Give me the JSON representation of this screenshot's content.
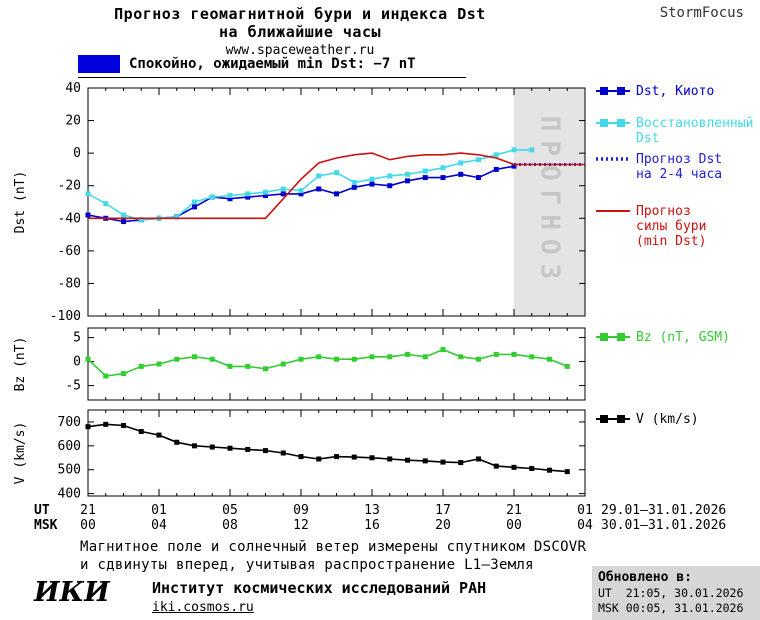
{
  "header": {
    "title_line1": "Прогноз геомагнитной бури и индекса Dst",
    "title_line2": "на ближайшие часы",
    "site": "www.spaceweather.ru",
    "brand": "StormFocus"
  },
  "status_legend": {
    "label": "Спокойно, ожидаемый min Dst: −7 nT",
    "swatch_color": "#0000dd"
  },
  "chart_data": [
    {
      "type": "line",
      "slug": "dst",
      "ylabel": "Dst (nT)",
      "ylim": [
        -100,
        40
      ],
      "yticks": [
        40,
        20,
        0,
        -20,
        -40,
        -60,
        -80,
        -100
      ],
      "series": [
        {
          "name": "Dst, Киото",
          "slug": "dst-kyoto",
          "color": "#0000cc",
          "marker": "square",
          "style": "solid",
          "x": [
            0,
            1,
            2,
            3,
            4,
            5,
            6,
            7,
            8,
            9,
            10,
            11,
            12,
            13,
            14,
            15,
            16,
            17,
            18,
            19,
            20,
            21,
            22,
            23,
            24
          ],
          "values": [
            -38,
            -40,
            -42,
            -41,
            -40,
            -39,
            -33,
            -27,
            -28,
            -27,
            -26,
            -25,
            -25,
            -22,
            -25,
            -21,
            -19,
            -20,
            -17,
            -15,
            -15,
            -13,
            -15,
            -10,
            -8
          ]
        },
        {
          "name": "Восстановленный Dst",
          "slug": "reconstructed-dst",
          "color": "#44d9e6",
          "marker": "square",
          "style": "solid",
          "x": [
            0,
            1,
            2,
            3,
            4,
            5,
            6,
            7,
            8,
            9,
            10,
            11,
            12,
            13,
            14,
            15,
            16,
            17,
            18,
            19,
            20,
            21,
            22,
            23,
            24,
            25
          ],
          "values": [
            -25,
            -31,
            -38,
            -41,
            -40,
            -39,
            -30,
            -27,
            -26,
            -25,
            -24,
            -22,
            -23,
            -14,
            -12,
            -18,
            -16,
            -14,
            -13,
            -11,
            -9,
            -6,
            -4,
            -1,
            2,
            2
          ]
        },
        {
          "name": "Прогноз Dst на 2-4 часа",
          "slug": "forecast-dst",
          "color": "#2222cc",
          "marker": "none",
          "style": "dotted",
          "x": [
            24,
            25,
            26,
            27,
            28
          ],
          "values": [
            -7,
            -7,
            -7,
            -7,
            -7
          ]
        },
        {
          "name": "Прогноз силы бури (min Dst)",
          "slug": "storm-strength-forecast",
          "color": "#cc1111",
          "marker": "none",
          "style": "solid",
          "x": [
            0,
            9,
            10,
            11,
            12,
            13,
            14,
            15,
            16,
            17,
            18,
            19,
            20,
            21,
            22,
            23,
            24,
            28
          ],
          "values": [
            -40,
            -40,
            -40,
            -28,
            -16,
            -6,
            -3,
            -1,
            0,
            -4,
            -2,
            -1,
            -1,
            0,
            -1,
            -3,
            -7,
            -7
          ]
        }
      ]
    },
    {
      "type": "line",
      "slug": "bz",
      "ylabel": "Bz (nT)",
      "ylim": [
        -8,
        7
      ],
      "yticks": [
        5,
        0,
        -5
      ],
      "series": [
        {
          "name": "Bz (nT, GSM)",
          "slug": "bz",
          "color": "#33cc33",
          "marker": "square",
          "style": "solid",
          "x": [
            0,
            1,
            2,
            3,
            4,
            5,
            6,
            7,
            8,
            9,
            10,
            11,
            12,
            13,
            14,
            15,
            16,
            17,
            18,
            19,
            20,
            21,
            22,
            23,
            24,
            25,
            26,
            27
          ],
          "values": [
            0.5,
            -3,
            -2.5,
            -1,
            -0.5,
            0.5,
            1,
            0.5,
            -1,
            -1,
            -1.5,
            -0.5,
            0.5,
            1,
            0.5,
            0.5,
            1,
            1,
            1.5,
            1,
            2.5,
            1,
            0.5,
            1.5,
            1.5,
            1,
            0.5,
            -1
          ]
        }
      ]
    },
    {
      "type": "line",
      "slug": "v",
      "ylabel": "V (km/s)",
      "ylim": [
        390,
        750
      ],
      "yticks": [
        700,
        600,
        500,
        400
      ],
      "series": [
        {
          "name": "V (km/s)",
          "slug": "solar-wind-speed",
          "color": "#000000",
          "marker": "square",
          "style": "solid",
          "x": [
            0,
            1,
            2,
            3,
            4,
            5,
            6,
            7,
            8,
            9,
            10,
            11,
            12,
            13,
            14,
            15,
            16,
            17,
            18,
            19,
            20,
            21,
            22,
            23,
            24,
            25,
            26,
            27
          ],
          "values": [
            680,
            690,
            685,
            660,
            645,
            615,
            600,
            595,
            590,
            585,
            580,
            570,
            555,
            545,
            555,
            553,
            550,
            545,
            540,
            537,
            532,
            530,
            545,
            515,
            510,
            505,
            498,
            492
          ]
        }
      ]
    }
  ],
  "xaxis": {
    "ut_label": "UT",
    "msk_label": "MSK",
    "tick_hours": [
      0,
      4,
      8,
      12,
      16,
      20,
      24,
      28
    ],
    "ut_ticks": [
      "21",
      "01",
      "05",
      "09",
      "13",
      "17",
      "21",
      "01"
    ],
    "msk_ticks": [
      "00",
      "04",
      "08",
      "12",
      "16",
      "20",
      "00",
      "04"
    ],
    "ut_range": "29.01–31.01.2026",
    "msk_range": "30.01–31.01.2026"
  },
  "forecast_overlay": {
    "label": "ПРОГНОЗ",
    "start_hour": 24,
    "end_hour": 28
  },
  "footnote": {
    "line1": "Магнитное поле и солнечный ветер измерены спутником DSCOVR",
    "line2": "и сдвинуты вперед, учитывая распространение L1–Земля"
  },
  "footer": {
    "logo": "ИКИ",
    "institute": "Институт космических исследований РАН",
    "site": "iki.cosmos.ru",
    "updated_label": "Обновлено в:",
    "updated_ut": "UT  21:05, 30.01.2026",
    "updated_msk": "MSK 00:05, 31.01.2026"
  }
}
